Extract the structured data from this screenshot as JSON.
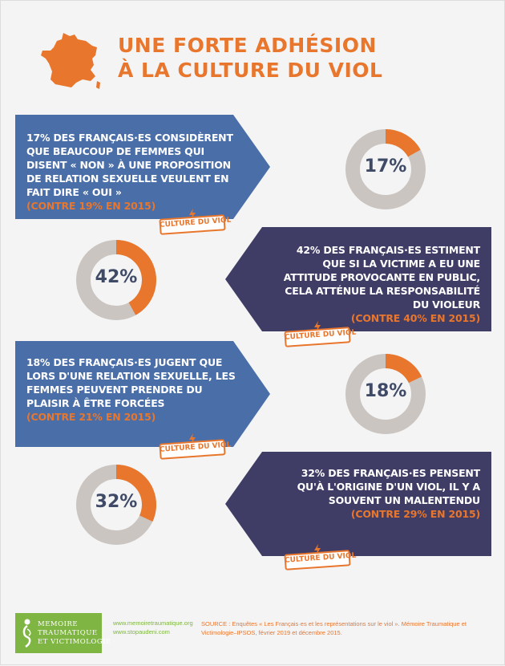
{
  "title": {
    "line1": "UNE FORTE ADHÉSION",
    "line2": "À LA CULTURE DU VIOL"
  },
  "stats": [
    {
      "statement": "17% DES FRANÇAIS·ES CONSIDÈRENT QUE BEAUCOUP DE FEMMES QUI DISENT « NON » À UNE PROPOSITION DE RELATION SEXUELLE VEULENT EN FAIT DIRE « OUI »",
      "comparison": "(CONTRE 19% EN 2015)",
      "percent_label": "17%",
      "percent_value": 17,
      "tag": "CULTURE DU VIOL"
    },
    {
      "statement": "42% DES FRANÇAIS·ES ESTIMENT QUE SI LA VICTIME A EU UNE ATTITUDE PROVOCANTE EN PUBLIC, CELA ATTÉNUE LA RESPONSABILITÉ DU VIOLEUR",
      "comparison": "(CONTRE 40% EN 2015)",
      "percent_label": "42%",
      "percent_value": 42,
      "tag": "CULTURE DU VIOL"
    },
    {
      "statement": "18% DES FRANÇAIS·ES JUGENT QUE LORS D'UNE RELATION SEXUELLE, LES FEMMES PEUVENT PRENDRE DU PLAISIR À ÊTRE FORCÉES",
      "comparison": "(CONTRE 21% EN 2015)",
      "percent_label": "18%",
      "percent_value": 18,
      "tag": "CULTURE DU VIOL"
    },
    {
      "statement": "32% DES FRANÇAIS·ES PENSENT QU'À L'ORIGINE D'UN VIOL, IL Y A SOUVENT UN MALENTENDU",
      "comparison": "(CONTRE 29% EN 2015)",
      "percent_label": "32%",
      "percent_value": 32,
      "tag": "CULTURE DU VIOL"
    }
  ],
  "footer": {
    "logo_line1": "MEMOIRE",
    "logo_line2": "TRAUMATIQUE",
    "logo_line3": "ET VICTIMOLOGIE",
    "url1": "www.memoiretraumatique.org",
    "url2": "www.stopaudeni.com",
    "source": "SOURCE : Enquêtes « Les Français·es et les représentations sur le viol ». Mémoire Traumatique et Victimologie–IPSOS, février 2019 et décembre 2015."
  },
  "colors": {
    "orange": "#e8762d",
    "blue_banner": "#4a6ea8",
    "purple_banner": "#3f3d66",
    "donut_grey": "#cbc5c1",
    "green": "#7fb543"
  }
}
